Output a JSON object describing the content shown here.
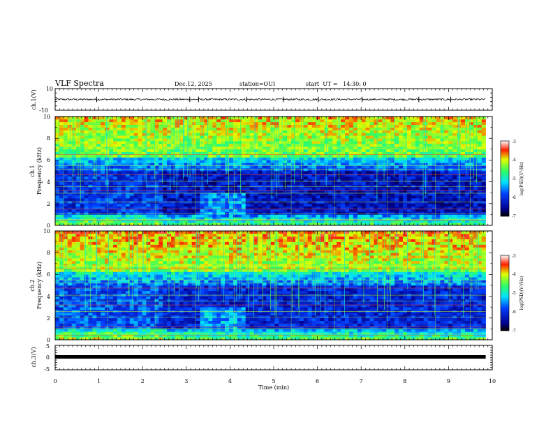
{
  "header": {
    "title": "VLF Spectra",
    "date": "Dec.12, 2025",
    "station": "station=OUI",
    "start": "start  UT =   14:30: 0"
  },
  "chart_data": [
    {
      "id": "ch1-voltage",
      "type": "line",
      "ylabel": "ch.1(V)",
      "ylim": [
        -10,
        10
      ],
      "yticks": [
        "10",
        "-10"
      ],
      "baseline": 0,
      "noise_amplitude": 0.8,
      "spikes_min": [
        0.95,
        3.08,
        3.28,
        4.38,
        5.22,
        6.02,
        7.02,
        8.32,
        9.05
      ]
    },
    {
      "id": "ch1-spectrogram",
      "type": "heatmap",
      "ylabel": "ch.1",
      "ylabel2": "Frequency (kHz)",
      "ylim": [
        0,
        10
      ],
      "yticks": [
        "0",
        "2",
        "4",
        "6",
        "8",
        "10"
      ],
      "colorbar": {
        "label": "log(PSD)(V²/Hz)",
        "range": [
          -7,
          -3
        ],
        "ticks": [
          "-3",
          "-4",
          "-5",
          "-6",
          "-7"
        ]
      },
      "lines_khz": [
        0.45,
        0.55,
        1.05,
        1.5,
        2.15,
        2.95,
        3.2,
        3.55,
        4.05,
        4.65,
        5.15,
        5.5,
        6.5,
        7.1,
        7.2
      ]
    },
    {
      "id": "ch2-spectrogram",
      "type": "heatmap",
      "ylabel": "ch.2",
      "ylabel2": "Frequency (kHz)",
      "ylim": [
        0,
        10
      ],
      "yticks": [
        "0",
        "2",
        "4",
        "6",
        "8",
        "10"
      ],
      "colorbar": {
        "label": "log(PSD)(V²/Hz)",
        "range": [
          -7,
          -3
        ],
        "ticks": [
          "-3",
          "-4",
          "-5",
          "-6",
          "-7"
        ]
      },
      "lines_khz": [
        0.4,
        0.55,
        1.05,
        1.2,
        2.1,
        2.6,
        3.2,
        3.55,
        4.1,
        4.75,
        5.2,
        5.5,
        6.5,
        6.75,
        6.85
      ]
    },
    {
      "id": "ch3-voltage",
      "type": "line",
      "ylabel": "ch.3(V)",
      "ylim": [
        -5,
        5
      ],
      "yticks": [
        "5",
        "0",
        "-5"
      ],
      "baseline": 0
    }
  ],
  "xaxis": {
    "label": "Time (min)",
    "range": [
      0,
      10
    ],
    "data_end": 9.85,
    "ticks": [
      "0",
      "1",
      "2",
      "3",
      "4",
      "5",
      "6",
      "7",
      "8",
      "9",
      "10"
    ]
  }
}
